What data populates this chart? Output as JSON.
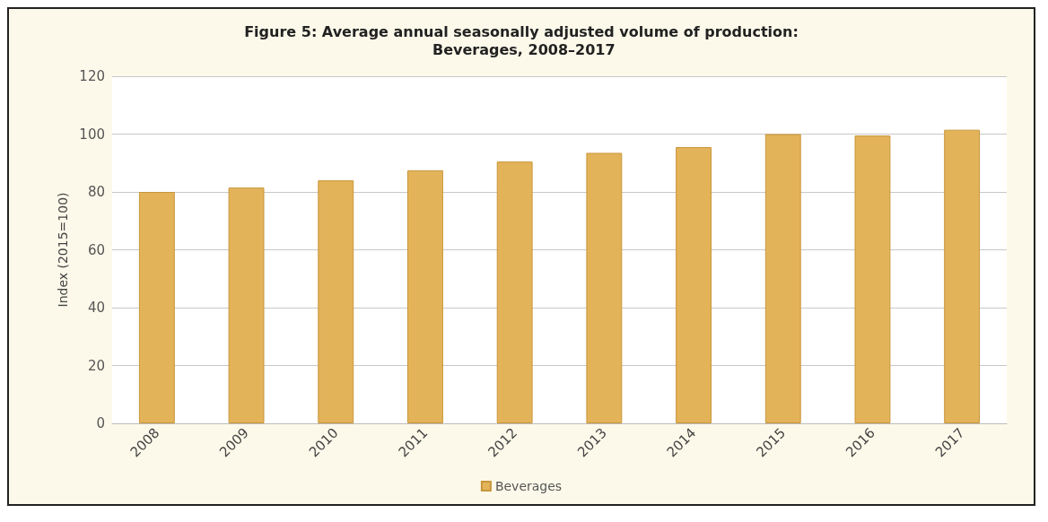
{
  "chart_data": {
    "type": "bar",
    "title": "Figure 5: Average annual seasonally adjusted volume of production: Beverages, 2008–2017",
    "ylabel": "Index (2015=100)",
    "categories": [
      "2008",
      "2009",
      "2010",
      "2011",
      "2012",
      "2013",
      "2014",
      "2015",
      "2016",
      "2017"
    ],
    "series": [
      {
        "name": "Beverages",
        "color": "#e3b35a",
        "values": [
          80,
          81.5,
          84,
          87.5,
          90.5,
          93.5,
          95.5,
          100,
          99.5,
          101.5
        ]
      }
    ],
    "ylim": [
      0,
      120
    ],
    "yticks": [
      0,
      20,
      40,
      60,
      80,
      100,
      120
    ],
    "grid": "y",
    "legend": "bottom"
  }
}
